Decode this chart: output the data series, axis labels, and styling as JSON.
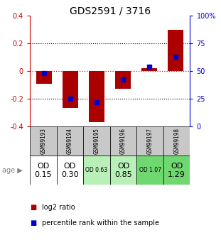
{
  "title": "GDS2591 / 3716",
  "samples": [
    "GSM99193",
    "GSM99194",
    "GSM99195",
    "GSM99196",
    "GSM99197",
    "GSM99198"
  ],
  "log2_ratio": [
    -0.095,
    -0.27,
    -0.37,
    -0.13,
    0.02,
    0.3
  ],
  "percentile_rank": [
    48,
    25,
    22,
    42,
    54,
    63
  ],
  "age_labels": [
    "OD\n0.15",
    "OD\n0.30",
    "OD 0.63",
    "OD\n0.85",
    "OD 1.07",
    "OD\n1.29"
  ],
  "age_bg_colors": [
    "#ffffff",
    "#ffffff",
    "#b8f0b8",
    "#b8f0b8",
    "#70d870",
    "#70d870"
  ],
  "age_fontsize_large": [
    true,
    true,
    false,
    true,
    false,
    true
  ],
  "bar_color": "#aa0000",
  "dot_color": "#0000cc",
  "ylim": [
    -0.4,
    0.4
  ],
  "yticks_left": [
    -0.4,
    -0.2,
    0.0,
    0.2,
    0.4
  ],
  "yticks_right": [
    0,
    25,
    50,
    75,
    100
  ],
  "left_color": "#cc0000",
  "right_color": "#0000cc",
  "background_color": "#ffffff",
  "sample_bg": "#c8c8c8"
}
